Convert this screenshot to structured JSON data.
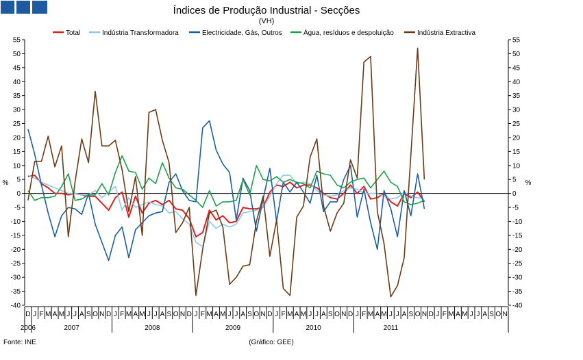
{
  "brand": {
    "logo_color": "#1e5aa0"
  },
  "chart_data": {
    "type": "line",
    "title": "Índices de Produção Industrial - Secções",
    "subtitle": "(VH)",
    "ylabel_left": "%",
    "ylabel_right": "%",
    "ylim": [
      -40,
      55
    ],
    "ytick_step": 5,
    "grid": false,
    "legend_position": "top",
    "source": "Fonte: INE",
    "credit": "(Gráfico: GEE)",
    "month_letters": [
      "D",
      "J",
      "F",
      "M",
      "A",
      "M",
      "J",
      "J",
      "A",
      "S",
      "O",
      "N",
      "D",
      "J",
      "F",
      "M",
      "A",
      "M",
      "J",
      "J",
      "A",
      "S",
      "O",
      "N",
      "D",
      "J",
      "F",
      "M",
      "A",
      "M",
      "J",
      "J",
      "A",
      "S",
      "O",
      "N",
      "D",
      "J",
      "F",
      "M",
      "A",
      "M",
      "J",
      "J",
      "A",
      "S",
      "O",
      "N",
      "D",
      "J",
      "F",
      "M",
      "A",
      "M",
      "J",
      "J",
      "A",
      "S",
      "O",
      "N",
      "D",
      "J",
      "F",
      "M",
      "A",
      "M",
      "J",
      "J",
      "A",
      "S",
      "O",
      "N"
    ],
    "years": [
      {
        "label": "2006",
        "start": 0,
        "count": 1
      },
      {
        "label": "2007",
        "start": 1,
        "count": 12
      },
      {
        "label": "2008",
        "start": 13,
        "count": 12
      },
      {
        "label": "2009",
        "start": 25,
        "count": 12
      },
      {
        "label": "2010",
        "start": 37,
        "count": 12
      },
      {
        "label": "2011",
        "start": 49,
        "count": 11
      }
    ],
    "series": [
      {
        "name": "Total",
        "color": "#e0201c",
        "values": [
          6,
          6.5,
          3.5,
          2,
          0,
          0,
          -0.5,
          0,
          -0.5,
          -1,
          -1,
          -3.5,
          -6,
          -1.5,
          0.5,
          -8.5,
          -1,
          -7,
          -3.5,
          -2.5,
          -4,
          -2.5,
          -5.5,
          -6,
          -9,
          -15.5,
          -14,
          -6,
          -9.5,
          -8,
          -10.5,
          -10,
          -5,
          -5.5,
          -5.5,
          -5,
          0.5,
          3,
          2.5,
          4,
          2,
          3,
          3,
          2,
          0,
          -1.5,
          -2,
          0,
          3,
          0,
          2.5,
          -2,
          -1.5,
          0,
          -3,
          -4.5,
          0,
          -1.5,
          0.5,
          -3
        ]
      },
      {
        "name": "Indústria Transformadora",
        "color": "#8fc8ee",
        "values": [
          6.5,
          5.5,
          4,
          3,
          2,
          1,
          0,
          0,
          -0.5,
          -0.5,
          1,
          -1.5,
          0.5,
          2.5,
          -6,
          -1.5,
          -5,
          -4,
          -3,
          -4,
          -4.5,
          -7,
          -6.5,
          -9,
          -11,
          -17.5,
          -19,
          -10,
          -12.5,
          -11,
          -12,
          -11,
          -7,
          -6.5,
          -6,
          -5,
          -1,
          3.5,
          6.5,
          6.5,
          3.5,
          4,
          3.5,
          1,
          -0.5,
          -1,
          -0.5,
          1,
          2,
          1.5,
          0,
          0,
          0,
          -1,
          -2,
          -1.5,
          0.5,
          -1,
          -1.5,
          -2
        ]
      },
      {
        "name": "Electricidade, Gás, Outros",
        "color": "#1a5ea4",
        "values": [
          23,
          14,
          3,
          -7,
          -15.5,
          -8,
          -5,
          -5.5,
          -7.5,
          0,
          -11,
          -17.5,
          -24,
          -15,
          -12,
          -23,
          -13,
          -10.5,
          -8,
          -7,
          -6.5,
          4,
          7,
          1,
          -2.5,
          -3,
          23.5,
          26,
          15.5,
          10.5,
          7.5,
          -9.5,
          5.5,
          1,
          -13.5,
          -2,
          9,
          -10,
          4,
          0.5,
          4,
          0.5,
          -3.5,
          6.5,
          -6.5,
          -3,
          -3,
          5,
          10,
          -8.5,
          1.5,
          -10.5,
          -20,
          1,
          -5.5,
          -15.5,
          1,
          -8,
          7,
          -5.5
        ]
      },
      {
        "name": "Água, resíduos e despoluição",
        "color": "#1f9f4b",
        "values": [
          1,
          -2.5,
          -1.5,
          -1.5,
          -1,
          2.5,
          7,
          -2.5,
          -2,
          -0.5,
          -0.5,
          3.5,
          -0.5,
          7.5,
          13.5,
          8,
          7.5,
          1.5,
          5.5,
          3.5,
          11,
          5.5,
          2,
          1.5,
          -0.5,
          -2.5,
          -5,
          1,
          -4.5,
          -3,
          -3,
          -2.5,
          5,
          -0.5,
          10,
          5,
          4.5,
          6,
          4,
          5,
          4,
          3.5,
          2,
          8,
          7,
          6.5,
          3,
          2,
          4,
          5,
          5.5,
          2,
          5,
          8,
          4,
          2.5,
          -3,
          -4,
          -3.5,
          -2.5
        ]
      },
      {
        "name": "Indústria Extractiva",
        "color": "#6b3a14",
        "values": [
          -2.5,
          11.5,
          11.5,
          20.5,
          9.5,
          17,
          -15.5,
          4,
          19.5,
          11,
          36.5,
          17,
          17,
          19,
          8.5,
          -6.5,
          6,
          -15,
          29,
          30,
          19,
          11,
          -14,
          -10.5,
          -5,
          -36.5,
          -20,
          -7,
          -6,
          -12,
          -32.5,
          -30,
          -26,
          -25.5,
          -10,
          -1,
          -22.5,
          -9.5,
          -34,
          -36.5,
          -8.5,
          -4.5,
          13,
          19.5,
          -4.5,
          -13.5,
          -7,
          -3.5,
          12,
          5.5,
          47,
          49,
          -6.5,
          -18,
          -37,
          -33,
          -23,
          14,
          52,
          5
        ]
      }
    ]
  }
}
